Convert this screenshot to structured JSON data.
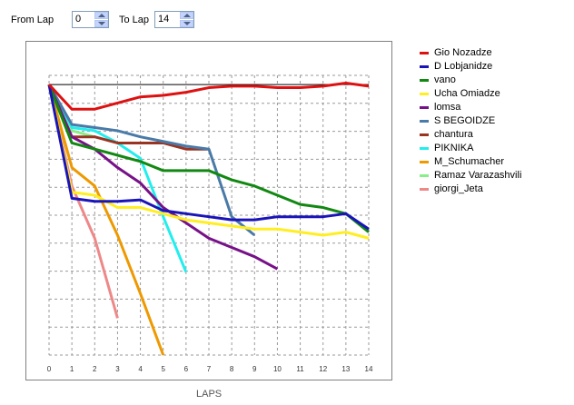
{
  "controls": {
    "from_lap_label": "From Lap",
    "from_lap_value": "0",
    "to_lap_label": "To Lap",
    "to_lap_value": "14"
  },
  "chart_data": {
    "type": "line",
    "xlabel": "LAPS",
    "x_ticks": [
      0,
      1,
      2,
      3,
      4,
      5,
      6,
      7,
      8,
      9,
      10,
      11,
      12,
      13,
      14
    ],
    "xlim": [
      0,
      14
    ],
    "grid": true,
    "legend_position": "right",
    "series": [
      {
        "name": "Gio Nozadze",
        "color": "#dd1111",
        "x": [
          0,
          1,
          2,
          3,
          4,
          5,
          6,
          7,
          8,
          9,
          10,
          11,
          12,
          13,
          14
        ],
        "y": [
          0,
          -0.8,
          -0.8,
          -0.6,
          -0.4,
          -0.35,
          -0.25,
          -0.1,
          -0.05,
          -0.05,
          -0.1,
          -0.1,
          -0.05,
          0.05,
          -0.05
        ]
      },
      {
        "name": "D Lobjanidze",
        "color": "#1a14b8",
        "x": [
          0,
          1,
          2,
          3,
          4,
          5,
          6,
          7,
          8,
          9,
          10,
          11,
          12,
          13,
          14
        ],
        "y": [
          0,
          -3.7,
          -3.8,
          -3.8,
          -3.75,
          -4.1,
          -4.2,
          -4.3,
          -4.4,
          -4.4,
          -4.3,
          -4.3,
          -4.3,
          -4.2,
          -4.7
        ]
      },
      {
        "name": "vano",
        "color": "#118811",
        "x": [
          0,
          1,
          2,
          3,
          4,
          5,
          6,
          7,
          8,
          9,
          10,
          11,
          12,
          13,
          14
        ],
        "y": [
          0,
          -1.9,
          -2.1,
          -2.3,
          -2.5,
          -2.8,
          -2.8,
          -2.8,
          -3.1,
          -3.3,
          -3.6,
          -3.9,
          -4.0,
          -4.2,
          -4.8
        ]
      },
      {
        "name": "Ucha Omiadze",
        "color": "#ffee22",
        "x": [
          0,
          1,
          2,
          3,
          4,
          5,
          6,
          7,
          8,
          9,
          10,
          11,
          12,
          13,
          14
        ],
        "y": [
          0,
          -3.5,
          -3.6,
          -4.0,
          -4.0,
          -4.2,
          -4.4,
          -4.5,
          -4.6,
          -4.7,
          -4.7,
          -4.8,
          -4.9,
          -4.8,
          -5.0
        ]
      },
      {
        "name": "lomsa",
        "color": "#771188",
        "x": [
          0,
          1,
          2,
          3,
          4,
          5,
          6,
          7,
          8,
          9,
          10
        ],
        "y": [
          0,
          -1.7,
          -2.1,
          -2.7,
          -3.2,
          -4.0,
          -4.5,
          -5.0,
          -5.3,
          -5.6,
          -6.0
        ]
      },
      {
        "name": "S BEGOIDZE",
        "color": "#4a7aa8",
        "x": [
          0,
          1,
          2,
          3,
          4,
          5,
          6,
          7,
          8,
          9
        ],
        "y": [
          0,
          -1.3,
          -1.4,
          -1.5,
          -1.7,
          -1.85,
          -2.0,
          -2.1,
          -4.3,
          -4.9
        ]
      },
      {
        "name": "chantura",
        "color": "#993322",
        "x": [
          0,
          1,
          2,
          3,
          4,
          5,
          6,
          7
        ],
        "y": [
          0,
          -1.7,
          -1.7,
          -1.9,
          -1.9,
          -1.9,
          -2.1,
          -2.1
        ]
      },
      {
        "name": "PIKNIKA",
        "color": "#22eeee",
        "x": [
          0,
          1,
          2,
          3,
          4,
          5,
          6
        ],
        "y": [
          0,
          -1.4,
          -1.5,
          -1.9,
          -2.4,
          -4.3,
          -6.1
        ]
      },
      {
        "name": "M_Schumacher",
        "color": "#ee9900",
        "x": [
          0,
          1,
          2,
          3,
          4,
          5
        ],
        "y": [
          0,
          -2.7,
          -3.3,
          -4.9,
          -6.8,
          -8.8
        ]
      },
      {
        "name": "Ramaz Varazashvili",
        "color": "#88ee88",
        "x": [
          0,
          1,
          2
        ],
        "y": [
          0,
          -1.5,
          -1.7
        ]
      },
      {
        "name": "giorgi_Jeta",
        "color": "#ee8888",
        "x": [
          0,
          1,
          2,
          3
        ],
        "y": [
          0,
          -3.3,
          -5.0,
          -7.6
        ]
      }
    ],
    "ylim": [
      -8.8,
      0.3
    ]
  }
}
